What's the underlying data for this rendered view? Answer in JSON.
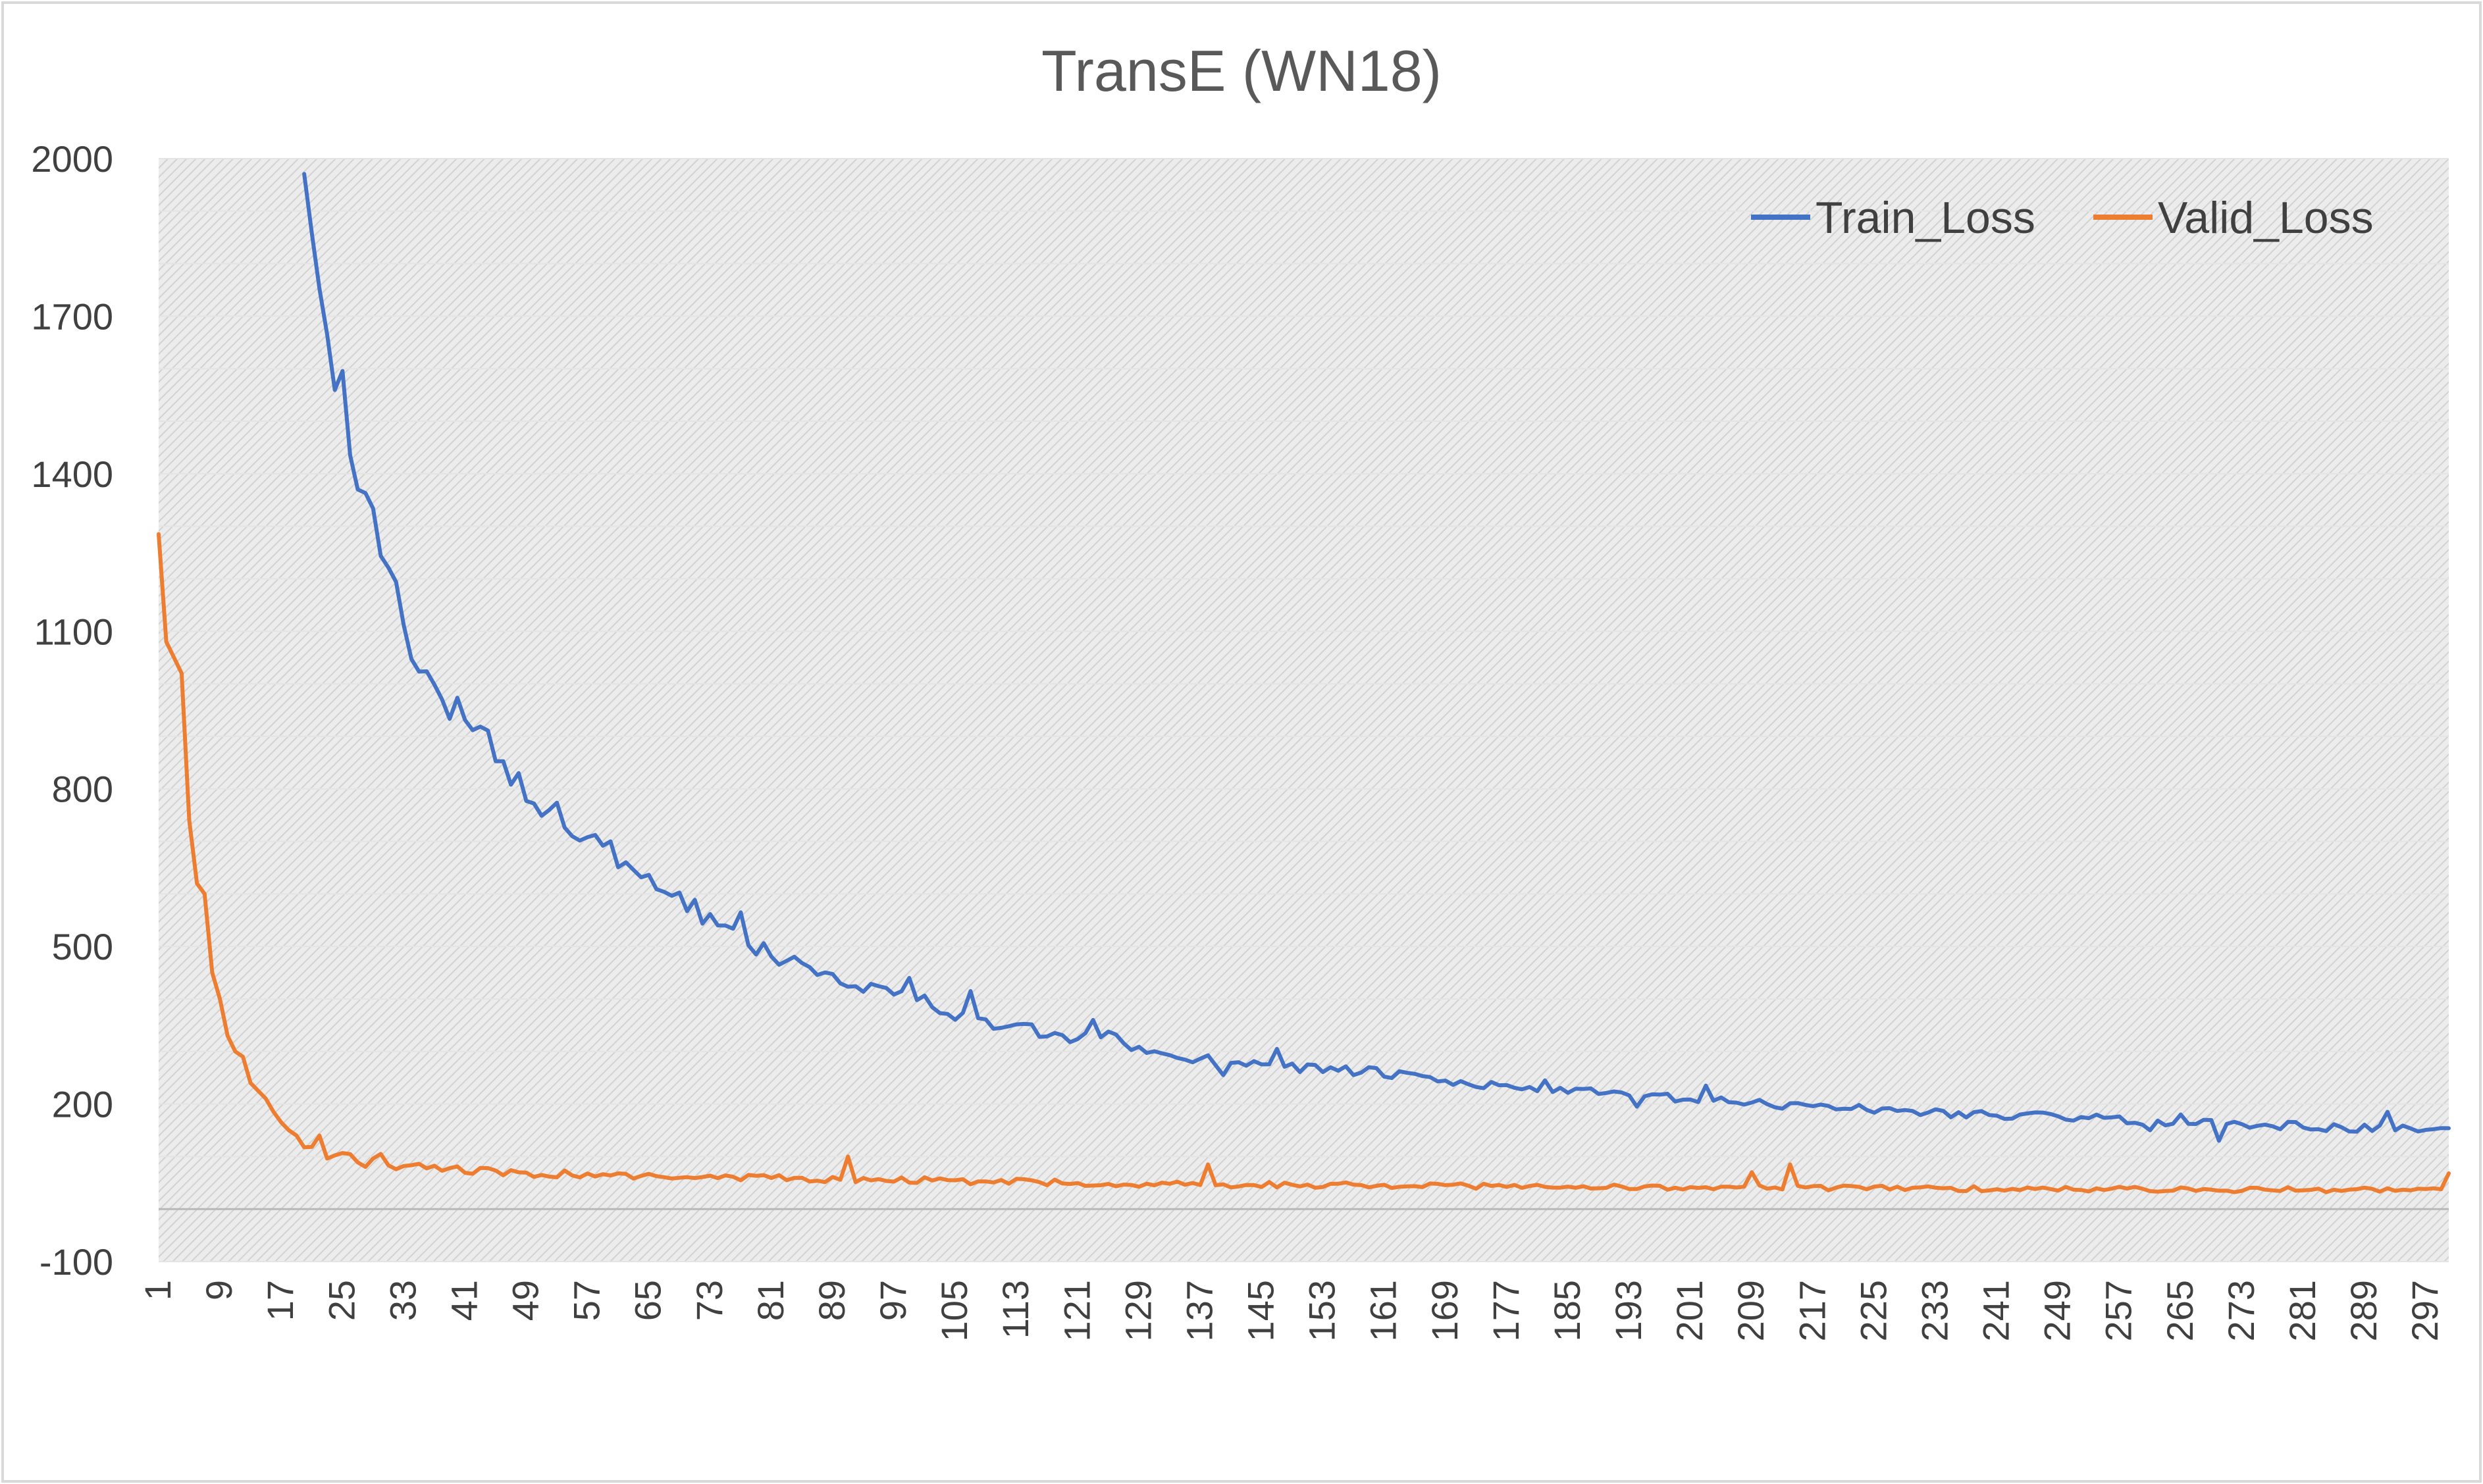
{
  "chart_data": {
    "type": "line",
    "title": "TransE (WN18)",
    "xlabel": "",
    "ylabel": "",
    "ylim": [
      -100,
      2000
    ],
    "y_ticks": [
      "-100",
      "200",
      "500",
      "800",
      "1100",
      "1400",
      "1700",
      "2000"
    ],
    "x_range": [
      1,
      300
    ],
    "x_ticks": [
      "1",
      "9",
      "17",
      "25",
      "33",
      "41",
      "49",
      "57",
      "65",
      "73",
      "81",
      "89",
      "97",
      "105",
      "113",
      "121",
      "129",
      "137",
      "145",
      "153",
      "161",
      "169",
      "177",
      "185",
      "193",
      "201",
      "209",
      "217",
      "225",
      "233",
      "241",
      "249",
      "257",
      "265",
      "273",
      "281",
      "289",
      "297"
    ],
    "legend_position": "top-right",
    "series": [
      {
        "name": "Train_Loss",
        "color": "#4472c4",
        "start": 20,
        "keypoints": [
          [
            20,
            2000
          ],
          [
            22,
            1800
          ],
          [
            23,
            1650
          ],
          [
            25,
            1560
          ],
          [
            26,
            1430
          ],
          [
            27,
            1360
          ],
          [
            28,
            1320
          ],
          [
            29,
            1290
          ],
          [
            30,
            1270
          ],
          [
            31,
            1210
          ],
          [
            33,
            1120
          ],
          [
            34,
            1080
          ],
          [
            36,
            1030
          ],
          [
            37,
            980
          ],
          [
            38,
            940
          ],
          [
            40,
            960
          ],
          [
            42,
            900
          ],
          [
            44,
            910
          ],
          [
            46,
            840
          ],
          [
            48,
            820
          ],
          [
            50,
            780
          ],
          [
            52,
            770
          ],
          [
            54,
            740
          ],
          [
            56,
            720
          ],
          [
            58,
            700
          ],
          [
            60,
            680
          ],
          [
            62,
            650
          ],
          [
            64,
            620
          ],
          [
            66,
            610
          ],
          [
            68,
            600
          ],
          [
            70,
            580
          ],
          [
            72,
            560
          ],
          [
            74,
            540
          ],
          [
            76,
            520
          ],
          [
            78,
            500
          ],
          [
            80,
            490
          ],
          [
            85,
            470
          ],
          [
            90,
            440
          ],
          [
            95,
            420
          ],
          [
            100,
            400
          ],
          [
            105,
            370
          ],
          [
            110,
            350
          ],
          [
            115,
            340
          ],
          [
            120,
            320
          ],
          [
            125,
            330
          ],
          [
            130,
            300
          ],
          [
            135,
            290
          ],
          [
            140,
            280
          ],
          [
            145,
            280
          ],
          [
            150,
            270
          ],
          [
            160,
            260
          ],
          [
            170,
            240
          ],
          [
            180,
            230
          ],
          [
            190,
            220
          ],
          [
            200,
            210
          ],
          [
            210,
            200
          ],
          [
            220,
            195
          ],
          [
            230,
            185
          ],
          [
            240,
            180
          ],
          [
            250,
            175
          ],
          [
            260,
            168
          ],
          [
            270,
            163
          ],
          [
            280,
            158
          ],
          [
            290,
            153
          ],
          [
            300,
            150
          ]
        ],
        "fixed": {
          "74": 540,
          "77": 565,
          "99": 440,
          "107": 415,
          "123": 360,
          "140": 255,
          "147": 305,
          "182": 245,
          "194": 195,
          "203": 235,
          "261": 150,
          "265": 180,
          "270": 130,
          "292": 185
        }
      },
      {
        "name": "Valid_Loss",
        "color": "#ed7d31",
        "start": 1,
        "keypoints": [
          [
            1,
            1285
          ],
          [
            2,
            1080
          ],
          [
            3,
            1050
          ],
          [
            4,
            1020
          ],
          [
            5,
            740
          ],
          [
            6,
            620
          ],
          [
            7,
            600
          ],
          [
            8,
            450
          ],
          [
            9,
            400
          ],
          [
            10,
            330
          ],
          [
            11,
            300
          ],
          [
            12,
            290
          ],
          [
            13,
            240
          ],
          [
            14,
            225
          ],
          [
            15,
            210
          ],
          [
            16,
            185
          ],
          [
            17,
            165
          ],
          [
            18,
            145
          ],
          [
            19,
            140
          ],
          [
            20,
            125
          ],
          [
            21,
            120
          ],
          [
            22,
            108
          ],
          [
            24,
            103
          ],
          [
            26,
            100
          ],
          [
            28,
            90
          ],
          [
            30,
            85
          ],
          [
            35,
            80
          ],
          [
            40,
            75
          ],
          [
            45,
            70
          ],
          [
            50,
            68
          ],
          [
            55,
            65
          ],
          [
            60,
            63
          ],
          [
            70,
            60
          ],
          [
            80,
            58
          ],
          [
            90,
            57
          ],
          [
            100,
            55
          ],
          [
            110,
            52
          ],
          [
            120,
            50
          ],
          [
            130,
            48
          ],
          [
            140,
            47
          ],
          [
            150,
            46
          ],
          [
            160,
            45
          ],
          [
            170,
            44
          ],
          [
            180,
            43
          ],
          [
            190,
            42
          ],
          [
            200,
            41
          ],
          [
            210,
            40
          ],
          [
            220,
            40
          ],
          [
            230,
            39
          ],
          [
            240,
            39
          ],
          [
            250,
            38
          ],
          [
            260,
            38
          ],
          [
            270,
            37
          ],
          [
            280,
            37
          ],
          [
            290,
            36
          ],
          [
            300,
            36
          ]
        ],
        "fixed": {
          "18": 150,
          "22": 140,
          "30": 105,
          "91": 100,
          "138": 85,
          "209": 70,
          "214": 85,
          "300": 68
        }
      }
    ]
  }
}
